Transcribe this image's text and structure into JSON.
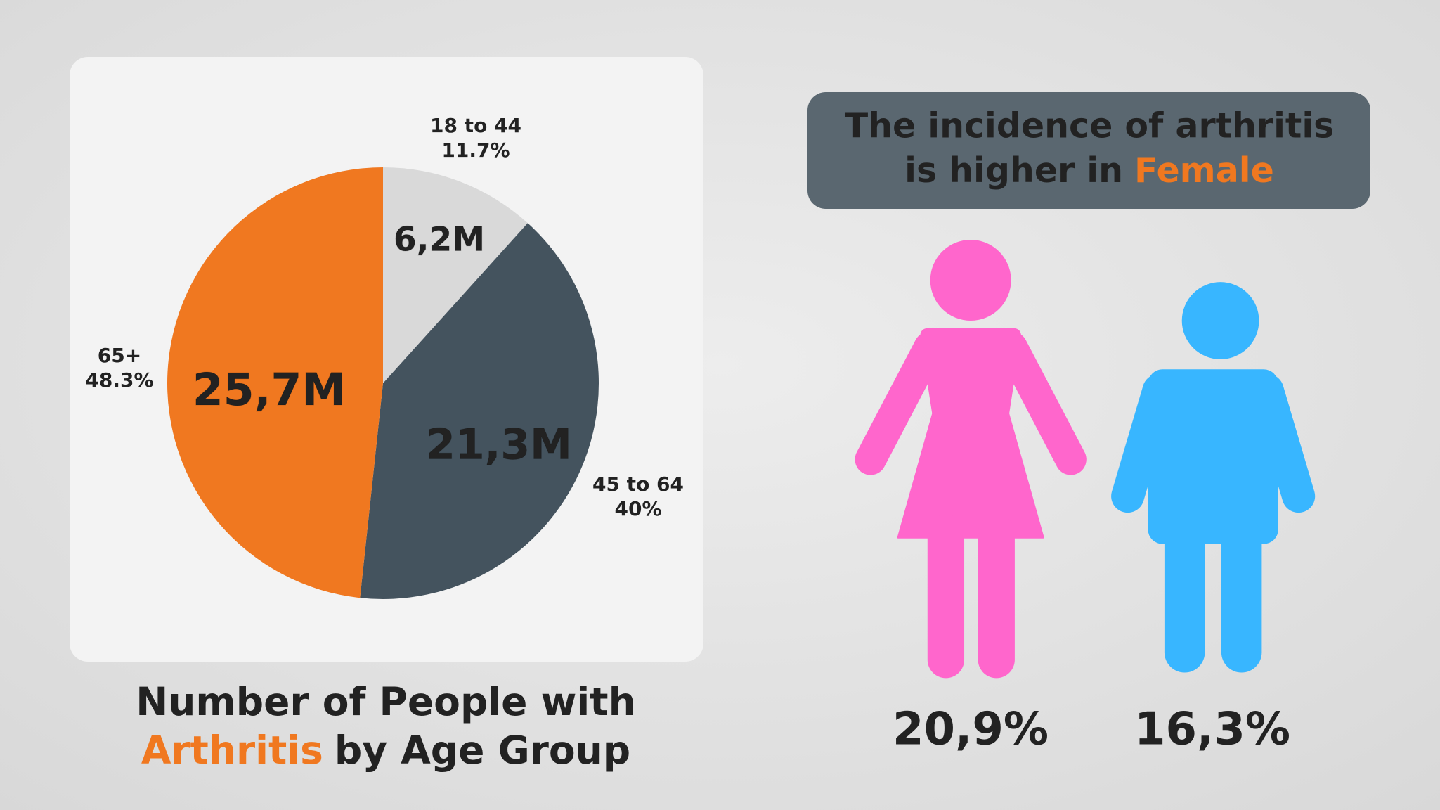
{
  "chart_data": [
    {
      "type": "pie",
      "title": [
        "Number of People with",
        "Arthritis",
        "by Age Group"
      ],
      "categories": [
        "18 to 44",
        "45 to 64",
        "65+"
      ],
      "values": [
        11.7,
        40,
        48.3
      ],
      "value_labels": [
        "11.7%",
        "40%",
        "48.3%"
      ],
      "counts": [
        6.2,
        21.3,
        25.7
      ],
      "count_labels": [
        "6,2M",
        "21,3M",
        "25,7M"
      ],
      "colors": [
        "#d9d9d9",
        "#44535e",
        "#f07820"
      ],
      "accent_color": "#f07820"
    },
    {
      "type": "pictograph",
      "title": [
        "The incidence of arthritis",
        "is higher in",
        "Female"
      ],
      "values": [
        20.9,
        16.3
      ],
      "value_labels": [
        "20,9%",
        "16,3%"
      ],
      "colors": [
        "#ff66cc",
        "#38b6ff"
      ],
      "accent_color": "#f07820"
    }
  ]
}
